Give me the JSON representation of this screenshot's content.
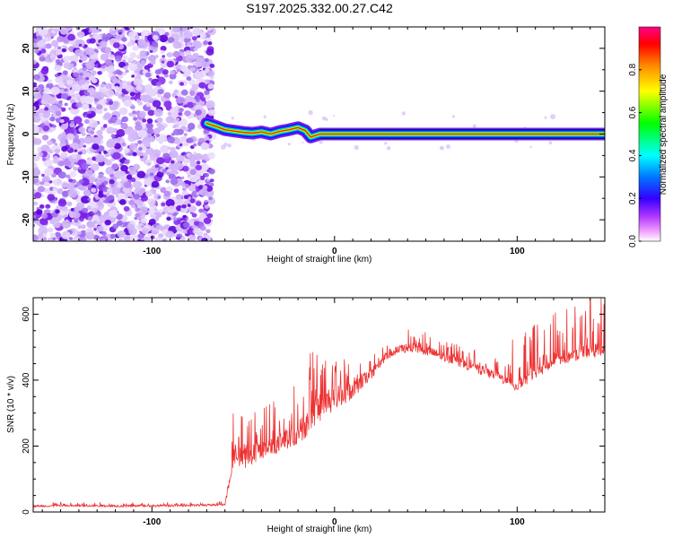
{
  "chart_data": [
    {
      "type": "heatmap",
      "title": "S197.2025.332.00.27.C42",
      "xlabel": "Height of straight line (km)",
      "ylabel": "Frequency (Hz)",
      "xlim": [
        -165,
        148
      ],
      "ylim": [
        -25,
        25
      ],
      "x_ticks": [
        -100,
        0,
        100
      ],
      "y_ticks": [
        -20,
        -10,
        0,
        10,
        20
      ],
      "noise_region_x": [
        -165,
        -67
      ],
      "signal_track": [
        {
          "x": -70,
          "y": 2.5
        },
        {
          "x": -65,
          "y": 1.8
        },
        {
          "x": -60,
          "y": 1.0
        },
        {
          "x": -55,
          "y": 0.7
        },
        {
          "x": -50,
          "y": 0.4
        },
        {
          "x": -45,
          "y": 0.2
        },
        {
          "x": -40,
          "y": 0.5
        },
        {
          "x": -35,
          "y": 0.0
        },
        {
          "x": -30,
          "y": 0.6
        },
        {
          "x": -25,
          "y": 1.0
        },
        {
          "x": -20,
          "y": 1.5
        },
        {
          "x": -16,
          "y": 0.8
        },
        {
          "x": -13,
          "y": -0.7
        },
        {
          "x": -8,
          "y": 0.0
        },
        {
          "x": 0,
          "y": 0.0
        },
        {
          "x": 50,
          "y": 0.0
        },
        {
          "x": 100,
          "y": 0.0
        },
        {
          "x": 148,
          "y": 0.0
        }
      ],
      "colorbar": {
        "label": "Normalized spectral amplitude",
        "min": 0.0,
        "max": 1.0,
        "ticks": [
          0.0,
          0.2,
          0.4,
          0.6,
          0.8
        ],
        "tick_labels": [
          "0.0",
          "0.2",
          "0.4",
          "0.6",
          "0.8"
        ]
      }
    },
    {
      "type": "line",
      "xlabel": "Height of straight line (km)",
      "ylabel": "SNR (10 * v/v)",
      "xlim": [
        -165,
        148
      ],
      "ylim": [
        0,
        650
      ],
      "x_ticks": [
        -100,
        0,
        100
      ],
      "y_ticks": [
        0,
        200,
        400,
        600
      ],
      "series": [
        {
          "name": "SNR",
          "color": "#ee3333",
          "x": [
            -165,
            -140,
            -110,
            -80,
            -60,
            -57,
            -55,
            -50,
            -45,
            -40,
            -30,
            -20,
            -15,
            -10,
            -5,
            0,
            10,
            20,
            30,
            40,
            50,
            60,
            70,
            80,
            90,
            100,
            110,
            120,
            130,
            140,
            148
          ],
          "y": [
            18,
            19,
            18,
            20,
            22,
            120,
            180,
            160,
            175,
            185,
            210,
            240,
            270,
            295,
            330,
            340,
            370,
            420,
            480,
            500,
            490,
            470,
            450,
            430,
            410,
            380,
            420,
            450,
            475,
            490,
            490
          ],
          "noise_amplitude": [
            5,
            5,
            5,
            5,
            5,
            45,
            55,
            50,
            50,
            50,
            55,
            60,
            70,
            75,
            70,
            55,
            45,
            30,
            25,
            25,
            25,
            25,
            25,
            25,
            25,
            25,
            25,
            25,
            30,
            40,
            40
          ]
        }
      ]
    }
  ]
}
